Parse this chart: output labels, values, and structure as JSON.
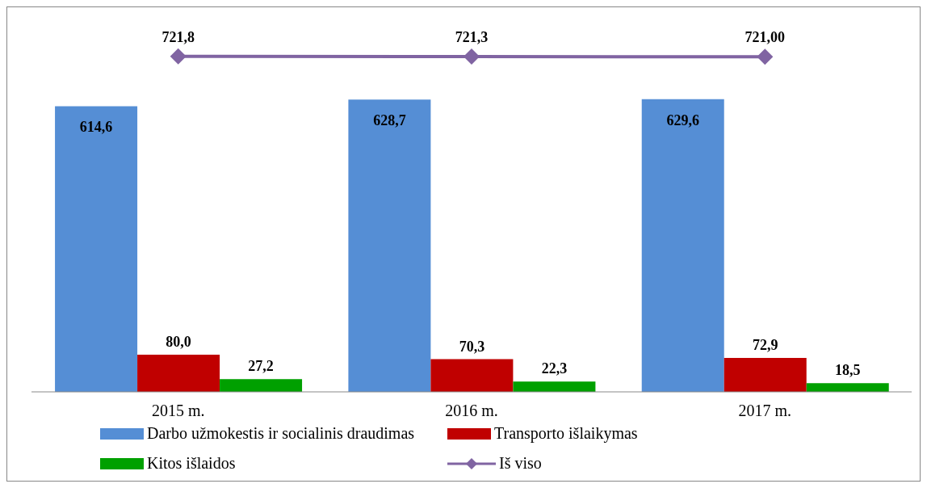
{
  "chart_data": {
    "type": "bar",
    "categories": [
      "2015 m.",
      "2016 m.",
      "2017 m."
    ],
    "series": [
      {
        "name": "Darbo užmokestis ir socialinis draudimas",
        "color": "#558ed5",
        "values": [
          614.6,
          628.7,
          629.6
        ],
        "value_labels": [
          "614,6",
          "628,7",
          "629,6"
        ]
      },
      {
        "name": "Transporto išlaikymas",
        "color": "#c00000",
        "values": [
          80.0,
          70.3,
          72.9
        ],
        "value_labels": [
          "80,0",
          "70,3",
          "72,9"
        ]
      },
      {
        "name": "Kitos išlaidos",
        "color": "#00a000",
        "values": [
          27.2,
          22.3,
          18.5
        ],
        "value_labels": [
          "27,2",
          "22,3",
          "18,5"
        ]
      },
      {
        "name": "Iš viso",
        "type": "line",
        "color": "#8064a2",
        "marker": "diamond",
        "values": [
          721.8,
          721.3,
          721.0
        ],
        "value_labels": [
          "721,8",
          "721,3",
          "721,00"
        ]
      }
    ],
    "legend": "bottom"
  }
}
